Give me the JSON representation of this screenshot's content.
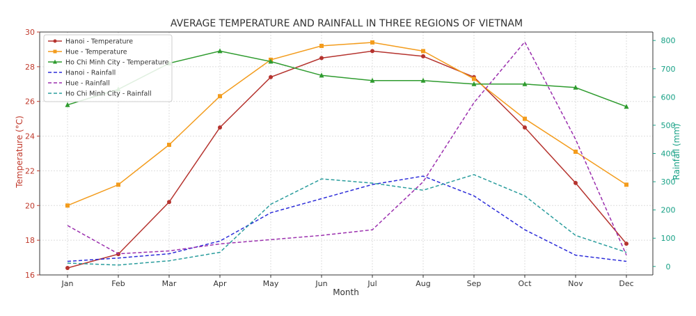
{
  "chart_data": {
    "type": "line",
    "title": "AVERAGE TEMPERATURE AND RAINFALL IN THREE REGIONS OF VIETNAM",
    "xlabel": "Month",
    "ylabel_left": "Temperature (°C)",
    "ylabel_right": "Rainfall (mm)",
    "categories": [
      "Jan",
      "Feb",
      "Mar",
      "Apr",
      "May",
      "Jun",
      "Jul",
      "Aug",
      "Sep",
      "Oct",
      "Nov",
      "Dec"
    ],
    "ylim_left": [
      16,
      30
    ],
    "yticks_left": [
      "16",
      "18",
      "20",
      "22",
      "24",
      "26",
      "28",
      "30"
    ],
    "ylim_right": [
      -30,
      830
    ],
    "yticks_right": [
      "0",
      "100",
      "200",
      "300",
      "400",
      "500",
      "600",
      "700",
      "800"
    ],
    "grid": true,
    "legend_position": "top-left",
    "colors": {
      "left_axis": "#c0392b",
      "right_axis": "#16a085"
    },
    "series": [
      {
        "name": "Hanoi - Temperature",
        "axis": "left",
        "color": "#b5332e",
        "style": "solid",
        "marker": "circle",
        "values": [
          16.4,
          17.2,
          20.2,
          24.5,
          27.4,
          28.5,
          28.9,
          28.6,
          27.4,
          24.5,
          21.3,
          17.8
        ]
      },
      {
        "name": "Hue - Temperature",
        "axis": "left",
        "color": "#f39c1d",
        "style": "solid",
        "marker": "square",
        "values": [
          20.0,
          21.2,
          23.5,
          26.3,
          28.4,
          29.2,
          29.4,
          28.9,
          27.3,
          25.0,
          23.1,
          21.2
        ]
      },
      {
        "name": "Ho Chi Minh City - Temperature",
        "axis": "left",
        "color": "#2e9b2e",
        "style": "solid",
        "marker": "triangle",
        "values": [
          25.8,
          26.7,
          28.2,
          28.9,
          28.3,
          27.5,
          27.2,
          27.2,
          27.0,
          27.0,
          26.8,
          25.7
        ]
      },
      {
        "name": "Hanoi - Rainfall",
        "axis": "right",
        "color": "#2b2bd9",
        "style": "dashed",
        "marker": "none",
        "values": [
          18,
          30,
          45,
          90,
          190,
          240,
          290,
          320,
          250,
          130,
          40,
          18
        ]
      },
      {
        "name": "Hue - Rainfall",
        "axis": "right",
        "color": "#9b2fae",
        "style": "dashed",
        "marker": "none",
        "values": [
          145,
          45,
          55,
          80,
          95,
          110,
          130,
          300,
          580,
          795,
          450,
          40
        ]
      },
      {
        "name": "Ho Chi Minh City - Rainfall",
        "axis": "right",
        "color": "#2a9d9d",
        "style": "dashed",
        "marker": "none",
        "values": [
          12,
          5,
          20,
          50,
          220,
          310,
          295,
          270,
          325,
          250,
          110,
          50
        ]
      }
    ]
  }
}
